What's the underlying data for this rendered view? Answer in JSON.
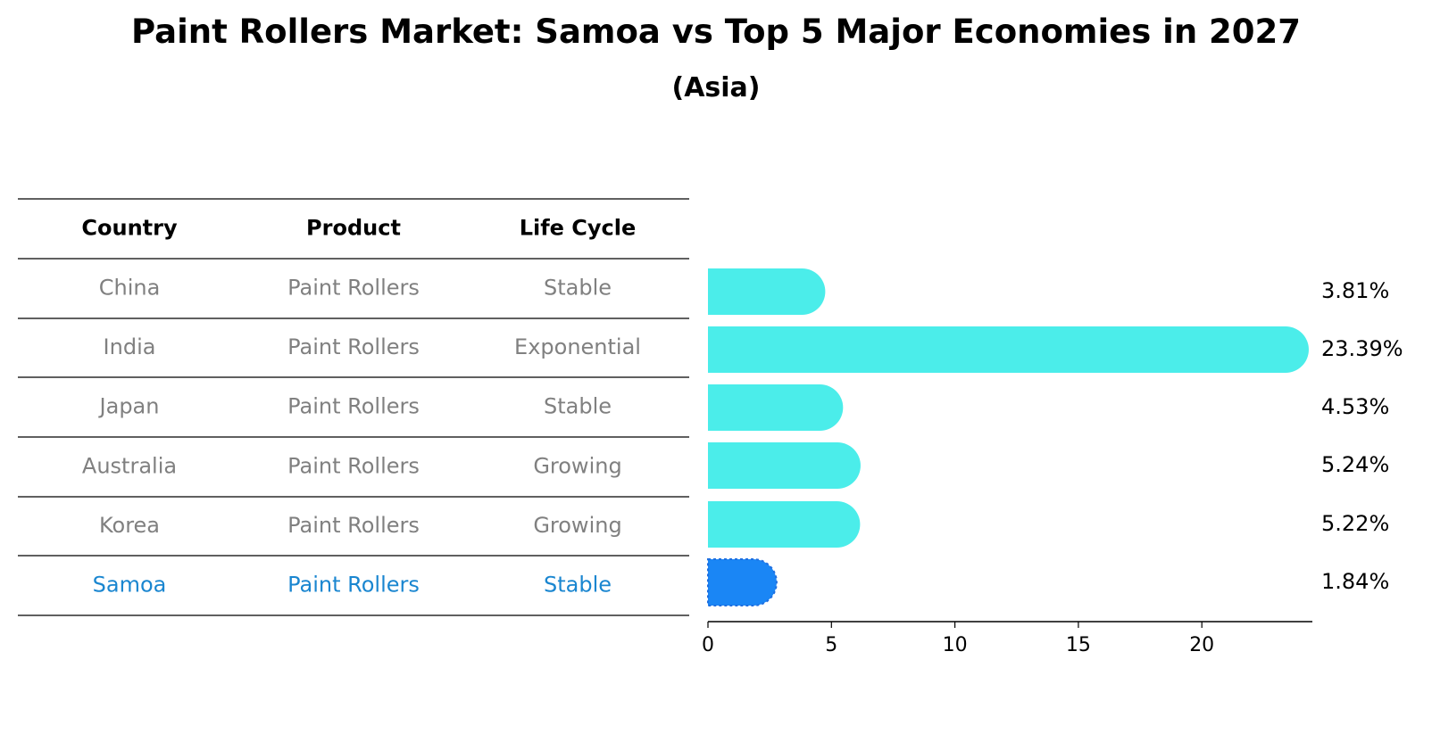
{
  "title": "Paint Rollers Market: Samoa vs Top 5 Major Economies in 2027",
  "subtitle": "(Asia)",
  "colors": {
    "bar": "#4BEDEA",
    "highlight_bar": "#1A86F5",
    "highlight_text": "#1A86D0",
    "muted_text": "#808080"
  },
  "table": {
    "headers": [
      "Country",
      "Product",
      "Life Cycle"
    ],
    "rows": [
      {
        "country": "China",
        "product": "Paint Rollers",
        "life_cycle": "Stable",
        "highlight": false
      },
      {
        "country": "India",
        "product": "Paint Rollers",
        "life_cycle": "Exponential",
        "highlight": false
      },
      {
        "country": "Japan",
        "product": "Paint Rollers",
        "life_cycle": "Stable",
        "highlight": false
      },
      {
        "country": "Australia",
        "product": "Paint Rollers",
        "life_cycle": "Growing",
        "highlight": false
      },
      {
        "country": "Korea",
        "product": "Paint Rollers",
        "life_cycle": "Growing",
        "highlight": false
      },
      {
        "country": "Samoa",
        "product": "Paint Rollers",
        "life_cycle": "Stable",
        "highlight": true
      }
    ]
  },
  "chart_data": {
    "type": "bar",
    "orientation": "horizontal",
    "categories": [
      "China",
      "India",
      "Japan",
      "Australia",
      "Korea",
      "Samoa"
    ],
    "values": [
      3.81,
      23.39,
      4.53,
      5.24,
      5.22,
      1.84
    ],
    "value_labels": [
      "3.81%",
      "23.39%",
      "4.53%",
      "5.24%",
      "5.22%",
      "1.84%"
    ],
    "highlight_category": "Samoa",
    "xlim": [
      0,
      24.5
    ],
    "xticks": [
      0,
      5,
      10,
      15,
      20
    ],
    "xtick_labels": [
      "0",
      "5",
      "10",
      "15",
      "20"
    ],
    "grid": false
  }
}
